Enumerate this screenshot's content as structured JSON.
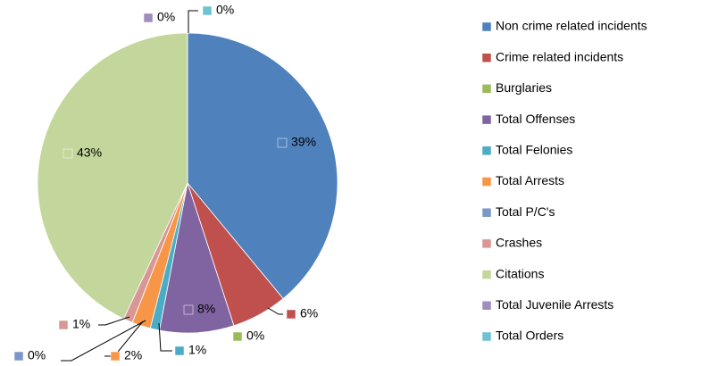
{
  "chart_data": {
    "type": "pie",
    "categories": [
      "Non crime related incidents",
      "Crime related incidents",
      "Burglaries",
      "Total Offenses",
      "Total Felonies",
      "Total Arrests",
      "Total P/C's",
      "Crashes",
      "Citations",
      "Total Juvenile Arrests",
      "Total Orders"
    ],
    "values": [
      39,
      6,
      0,
      8,
      1,
      2,
      0,
      1,
      43,
      0,
      0
    ],
    "value_labels": [
      "39%",
      "6%",
      "0%",
      "8%",
      "1%",
      "2%",
      "0%",
      "1%",
      "43%",
      "0%",
      "0%"
    ],
    "colors": [
      "#4f81bd",
      "#c0504d",
      "#9bbb59",
      "#8064a2",
      "#4bacc6",
      "#f79646",
      "#7b96c8",
      "#d99694",
      "#c3d69b",
      "#a18cbf",
      "#6fc1d6"
    ],
    "legend": "right"
  }
}
